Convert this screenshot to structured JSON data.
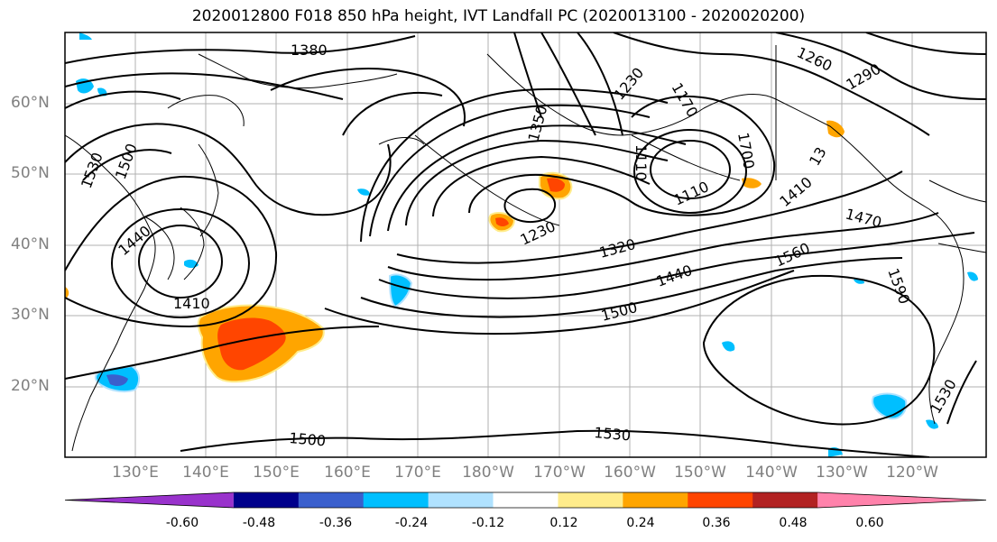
{
  "title": "2020012800 F018 850 hPa height, IVT Landfall PC (2020013100 - 2020020200)",
  "latitude_labels": [
    "60°N",
    "50°N",
    "40°N",
    "30°N",
    "20°N"
  ],
  "longitude_labels": [
    "130°E",
    "140°E",
    "150°E",
    "160°E",
    "170°E",
    "180°W",
    "170°W",
    "160°W",
    "150°W",
    "140°W",
    "130°W",
    "120°W"
  ],
  "contour_labels": [
    "1380",
    "1350",
    "1230",
    "1170",
    "1110",
    "1110",
    "1700",
    "1410",
    "1260",
    "1290",
    "1530",
    "1500",
    "1440",
    "1410",
    "1230",
    "1320",
    "1440",
    "1500",
    "1560",
    "1470",
    "1590",
    "1530",
    "1500",
    "1530",
    "13"
  ],
  "colorbar": {
    "colors": [
      "#9932cc",
      "#00008b",
      "#3a5fcd",
      "#00bfff",
      "#b0e2ff",
      "#ffffff",
      "#ffec8b",
      "#ffa500",
      "#ff4500",
      "#b22222",
      "#ff82ab"
    ],
    "tick_labels": [
      "-0.60",
      "-0.48",
      "-0.36",
      "-0.24",
      "-0.12",
      "0.12",
      "0.24",
      "0.36",
      "0.48",
      "0.60"
    ]
  }
}
